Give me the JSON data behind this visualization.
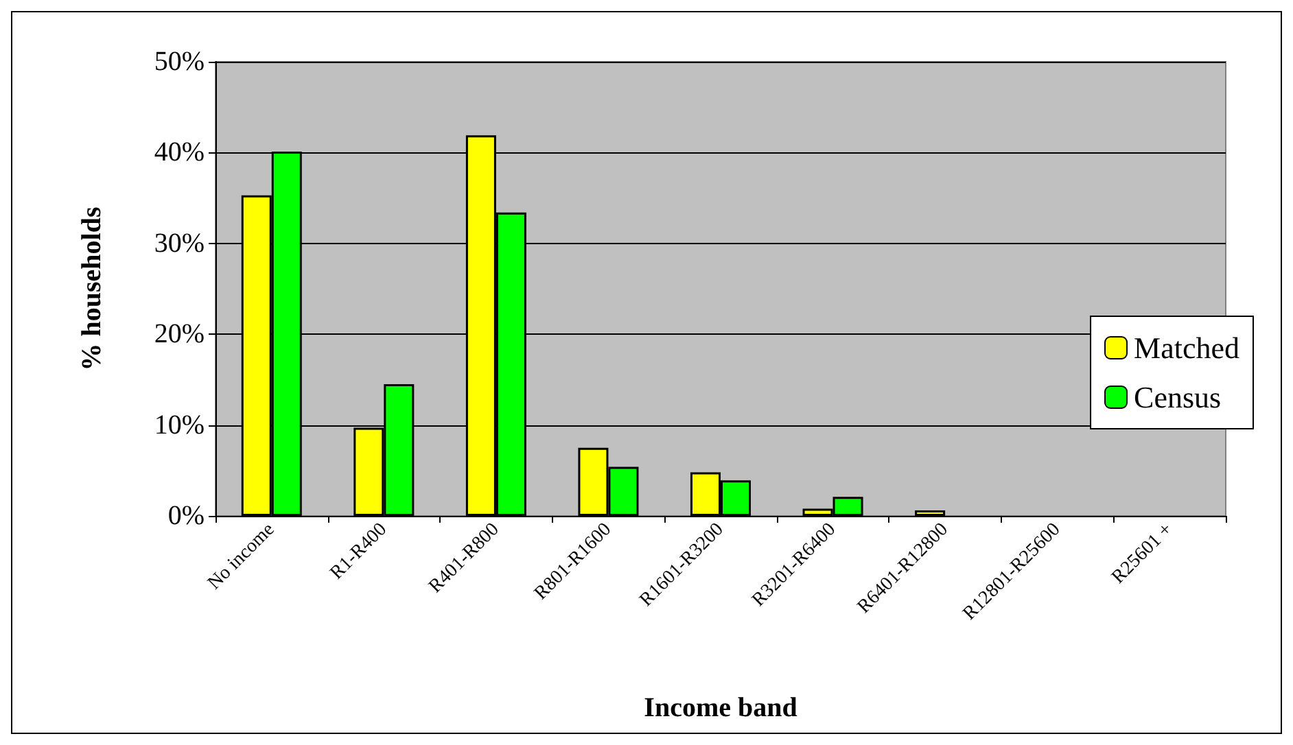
{
  "chart_data": {
    "type": "bar",
    "xlabel": "Income band",
    "ylabel": "% households",
    "categories": [
      "No income",
      "R1-R400",
      "R401-R800",
      "R801-R1600",
      "R1601-R3200",
      "R3201-R6400",
      "R6401-R12800",
      "R12801-R25600",
      "R25601 +"
    ],
    "series": [
      {
        "name": "Matched",
        "color": "#ffff00",
        "values": [
          35.3,
          9.7,
          41.9,
          7.5,
          4.8,
          0.8,
          0.6,
          0,
          0
        ]
      },
      {
        "name": "Census",
        "color": "#00ff00",
        "values": [
          40.1,
          14.5,
          33.4,
          5.4,
          3.9,
          2.1,
          0,
          0,
          0
        ]
      }
    ],
    "ylim": [
      0,
      50
    ],
    "yticks": [
      {
        "value": 0,
        "label": "0%"
      },
      {
        "value": 10,
        "label": "10%"
      },
      {
        "value": 20,
        "label": "20%"
      },
      {
        "value": 30,
        "label": "30%"
      },
      {
        "value": 40,
        "label": "40%"
      },
      {
        "value": 50,
        "label": "50%"
      }
    ],
    "grid": "y",
    "legend": "right"
  }
}
